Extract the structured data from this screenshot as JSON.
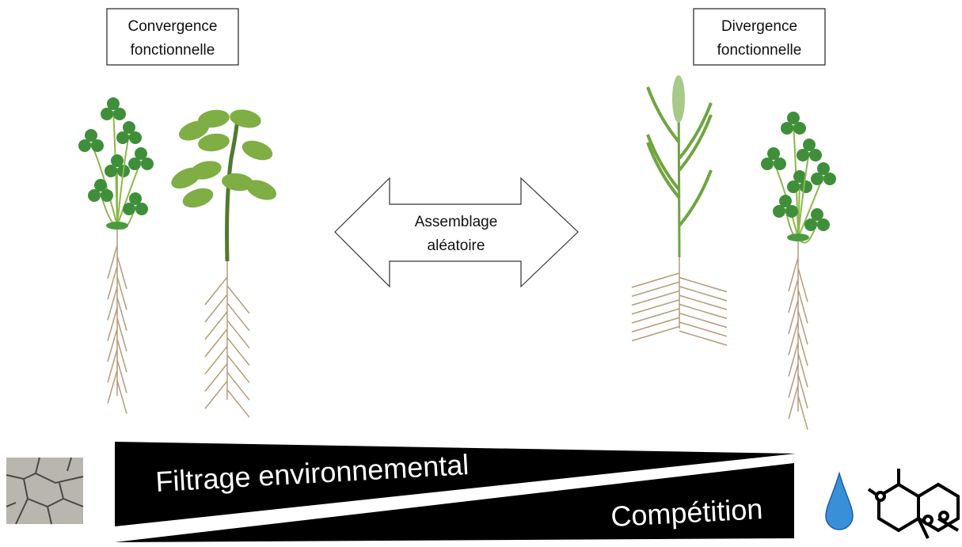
{
  "left_box": {
    "lines": [
      "Convergence",
      "fonctionnelle"
    ]
  },
  "right_box": {
    "lines": [
      "Divergence",
      "fonctionnelle"
    ]
  },
  "arrow": {
    "lines": [
      "Assemblage",
      "aléatoire"
    ]
  },
  "gradient": {
    "top_label": "Filtrage environnemental",
    "bottom_label": "Compétition"
  }
}
